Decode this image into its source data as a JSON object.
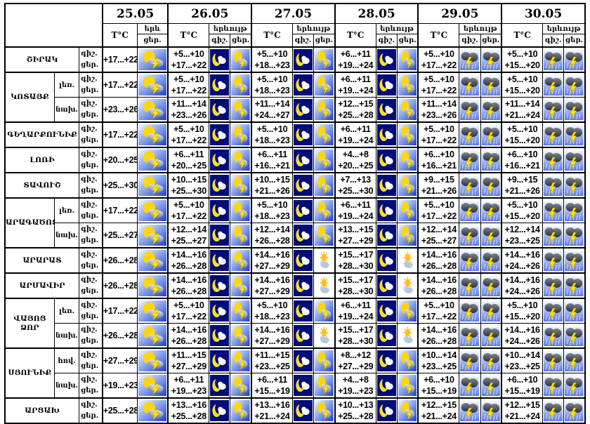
{
  "dates": [
    "25.05",
    "26.05",
    "27.05",
    "28.05",
    "29.05",
    "30.05"
  ],
  "header": {
    "temp_label": "T°C",
    "phenomenon_label": "երևույթ",
    "phenomenon_short": "երև",
    "night_label": "գիշ.",
    "day_label": "ցեր."
  },
  "icon_names": {
    "sl": "sun-cloud-lightning-icon",
    "mc": "moon-cloud-icon",
    "st": "storm-lightning-rain-icon",
    "sc": "sun-behind-cloud-icon"
  },
  "colors": {
    "border": "#000000",
    "background": "#ffffff",
    "night_icon_bg": "#000d78",
    "day_icon_bg": "#1d3bcf",
    "storm_icon_bg": "#5b79e8",
    "sun": "#ffd60a",
    "moon": "#ffdf29",
    "lightning": "#ffe70a",
    "dark_cloud": "#2e333b"
  },
  "regions": [
    {
      "name": "ՇԻՐԱԿ",
      "rows": [
        {
          "sub": null,
          "cells": [
            {
              "day": "+17...+22",
              "icons": [
                "sl"
              ]
            },
            {
              "night": "+5...+10",
              "day": "+17...+22",
              "icons": [
                "mc",
                "sl"
              ]
            },
            {
              "night": "+5...+10",
              "day": "+18...+23",
              "icons": [
                "mc",
                "sl"
              ]
            },
            {
              "night": "+6...+11",
              "day": "+19...+24",
              "icons": [
                "mc",
                "sl"
              ]
            },
            {
              "night": "+5...+10",
              "day": "+17...+22",
              "icons": [
                "st",
                "st"
              ]
            },
            {
              "night": "+5...+10",
              "day": "+15...+20",
              "icons": [
                "st",
                "st"
              ]
            }
          ]
        }
      ]
    },
    {
      "name": "ԿՈՏԱՅՔ",
      "rows": [
        {
          "sub": "լեռ.",
          "cells": [
            {
              "day": "+17...+22",
              "icons": [
                "sl"
              ]
            },
            {
              "night": "+5...+10",
              "day": "+17...+22",
              "icons": [
                "mc",
                "sl"
              ]
            },
            {
              "night": "+5...+10",
              "day": "+18...+23",
              "icons": [
                "mc",
                "sl"
              ]
            },
            {
              "night": "+6...+11",
              "day": "+19...+24",
              "icons": [
                "mc",
                "sl"
              ]
            },
            {
              "night": "+5...+10",
              "day": "+17...+22",
              "icons": [
                "st",
                "st"
              ]
            },
            {
              "night": "+5...+10",
              "day": "+15...+20",
              "icons": [
                "st",
                "st"
              ]
            }
          ]
        },
        {
          "sub": "նախ.",
          "cells": [
            {
              "day": "+23...+26",
              "icons": [
                "sl"
              ]
            },
            {
              "night": "+11...+14",
              "day": "+23...+26",
              "icons": [
                "mc",
                "sl"
              ]
            },
            {
              "night": "+11...+14",
              "day": "+24...+27",
              "icons": [
                "mc",
                "sl"
              ]
            },
            {
              "night": "+12...+15",
              "day": "+25...+28",
              "icons": [
                "mc",
                "sl"
              ]
            },
            {
              "night": "+11...+14",
              "day": "+23...+26",
              "icons": [
                "st",
                "st"
              ]
            },
            {
              "night": "+11...+14",
              "day": "+21...+24",
              "icons": [
                "st",
                "st"
              ]
            }
          ]
        }
      ]
    },
    {
      "name": "ԳԵՂԱՐՔՈՒՆԻՔ",
      "rows": [
        {
          "sub": null,
          "cells": [
            {
              "day": "+17...+22",
              "icons": [
                "sl"
              ]
            },
            {
              "night": "+5...+10",
              "day": "+17...+22",
              "icons": [
                "mc",
                "sl"
              ]
            },
            {
              "night": "+5...+10",
              "day": "+18...+23",
              "icons": [
                "mc",
                "sl"
              ]
            },
            {
              "night": "+6...+11",
              "day": "+19...+24",
              "icons": [
                "mc",
                "sl"
              ]
            },
            {
              "night": "+5...+10",
              "day": "+17...+22",
              "icons": [
                "st",
                "st"
              ]
            },
            {
              "night": "+5...+10",
              "day": "+15...+20",
              "icons": [
                "st",
                "st"
              ]
            }
          ]
        }
      ]
    },
    {
      "name": "ԼՈՌԻ",
      "rows": [
        {
          "sub": null,
          "cells": [
            {
              "day": "+20...+25",
              "icons": [
                "sl"
              ]
            },
            {
              "night": "+6...+11",
              "day": "+20...+25",
              "icons": [
                "mc",
                "sl"
              ]
            },
            {
              "night": "+6...+11",
              "day": "+16...+21",
              "icons": [
                "mc",
                "sl"
              ]
            },
            {
              "night": "+4...+8",
              "day": "+20...+25",
              "icons": [
                "mc",
                "sl"
              ]
            },
            {
              "night": "+6...+10",
              "day": "+16...+21",
              "icons": [
                "st",
                "st"
              ]
            },
            {
              "night": "+6...+10",
              "day": "+16...+21",
              "icons": [
                "st",
                "st"
              ]
            }
          ]
        }
      ]
    },
    {
      "name": "ՏԱՎՈՒՇ",
      "rows": [
        {
          "sub": null,
          "cells": [
            {
              "day": "+25...+30",
              "icons": [
                "sl"
              ]
            },
            {
              "night": "+10...+15",
              "day": "+25...+30",
              "icons": [
                "mc",
                "sl"
              ]
            },
            {
              "night": "+10...+15",
              "day": "+21...+26",
              "icons": [
                "mc",
                "sl"
              ]
            },
            {
              "night": "+7...+13",
              "day": "+25...+30",
              "icons": [
                "mc",
                "sl"
              ]
            },
            {
              "night": "+9...+15",
              "day": "+21...+26",
              "icons": [
                "st",
                "st"
              ]
            },
            {
              "night": "+9...+15",
              "day": "+21...+26",
              "icons": [
                "st",
                "st"
              ]
            }
          ]
        }
      ]
    },
    {
      "name": "ԱՐԱԳԱԾՈՏՆ",
      "rows": [
        {
          "sub": "լեռ.",
          "cells": [
            {
              "day": "+17...+22",
              "icons": [
                "sl"
              ]
            },
            {
              "night": "+5...+10",
              "day": "+17...+22",
              "icons": [
                "mc",
                "sl"
              ]
            },
            {
              "night": "+5...+10",
              "day": "+18...+23",
              "icons": [
                "mc",
                "sl"
              ]
            },
            {
              "night": "+6...+11",
              "day": "+19...+24",
              "icons": [
                "mc",
                "sl"
              ]
            },
            {
              "night": "+5...+10",
              "day": "+17...+22",
              "icons": [
                "st",
                "st"
              ]
            },
            {
              "night": "+5...+10",
              "day": "+15...+20",
              "icons": [
                "st",
                "st"
              ]
            }
          ]
        },
        {
          "sub": "նախ.",
          "cells": [
            {
              "day": "+25...+27",
              "icons": [
                "sl"
              ]
            },
            {
              "night": "+12...+14",
              "day": "+25...+27",
              "icons": [
                "mc",
                "sl"
              ]
            },
            {
              "night": "+12...+14",
              "day": "+26...+28",
              "icons": [
                "mc",
                "sl"
              ]
            },
            {
              "night": "+13...+15",
              "day": "+27...+29",
              "icons": [
                "mc",
                "sl"
              ]
            },
            {
              "night": "+12...+14",
              "day": "+25...+27",
              "icons": [
                "st",
                "st"
              ]
            },
            {
              "night": "+12...+14",
              "day": "+23...+25",
              "icons": [
                "st",
                "st"
              ]
            }
          ]
        }
      ]
    },
    {
      "name": "ԱՐԱՐԱՏ",
      "rows": [
        {
          "sub": null,
          "cells": [
            {
              "day": "+26...+28",
              "icons": [
                "sl"
              ]
            },
            {
              "night": "+14...+16",
              "day": "+26...+28",
              "icons": [
                "mc",
                "sl"
              ]
            },
            {
              "night": "+14...+16",
              "day": "+27...+29",
              "icons": [
                "mc",
                "sc"
              ]
            },
            {
              "night": "+15...+17",
              "day": "+28...+30",
              "icons": [
                "mc",
                "sc"
              ]
            },
            {
              "night": "+14...+16",
              "day": "+26...+28",
              "icons": [
                "st",
                "st"
              ]
            },
            {
              "night": "+14...+16",
              "day": "+24...+26",
              "icons": [
                "st",
                "st"
              ]
            }
          ]
        }
      ]
    },
    {
      "name": "ԱՐՄԱՎԻՐ",
      "rows": [
        {
          "sub": null,
          "cells": [
            {
              "day": "+26...+28",
              "icons": [
                "sl"
              ]
            },
            {
              "night": "+14...+16",
              "day": "+26...+28",
              "icons": [
                "mc",
                "sl"
              ]
            },
            {
              "night": "+14...+16",
              "day": "+27...+29",
              "icons": [
                "mc",
                "sc"
              ]
            },
            {
              "night": "+15...+17",
              "day": "+28...+30",
              "icons": [
                "mc",
                "sc"
              ]
            },
            {
              "night": "+14...+16",
              "day": "+26...+28",
              "icons": [
                "st",
                "st"
              ]
            },
            {
              "night": "+14...+16",
              "day": "+24...+26",
              "icons": [
                "st",
                "st"
              ]
            }
          ]
        }
      ]
    },
    {
      "name": "ՎԱՅՈՑ ՁՈՐ",
      "rows": [
        {
          "sub": "լեռ.",
          "cells": [
            {
              "day": "+17...+22",
              "icons": [
                "sl"
              ]
            },
            {
              "night": "+5...+10",
              "day": "+17...+22",
              "icons": [
                "mc",
                "sl"
              ]
            },
            {
              "night": "+5...+10",
              "day": "+18...+23",
              "icons": [
                "mc",
                "sl"
              ]
            },
            {
              "night": "+6...+11",
              "day": "+19...+24",
              "icons": [
                "mc",
                "sl"
              ]
            },
            {
              "night": "+5...+10",
              "day": "+17...+22",
              "icons": [
                "st",
                "st"
              ]
            },
            {
              "night": "+5...+10",
              "day": "+15...+20",
              "icons": [
                "st",
                "st"
              ]
            }
          ]
        },
        {
          "sub": "նախ.",
          "cells": [
            {
              "day": "+26...+28",
              "icons": [
                "sl"
              ]
            },
            {
              "night": "+14...+16",
              "day": "+26...+28",
              "icons": [
                "mc",
                "sl"
              ]
            },
            {
              "night": "+14...+16",
              "day": "+27...+29",
              "icons": [
                "mc",
                "sc"
              ]
            },
            {
              "night": "+15...+17",
              "day": "+28...+30",
              "icons": [
                "mc",
                "sc"
              ]
            },
            {
              "night": "+14...+16",
              "day": "+26...+28",
              "icons": [
                "st",
                "st"
              ]
            },
            {
              "night": "+14...+16",
              "day": "+24...+26",
              "icons": [
                "st",
                "st"
              ]
            }
          ]
        }
      ]
    },
    {
      "name": "ՍՅՈՒՆԻՔ",
      "rows": [
        {
          "sub": "հով.",
          "cells": [
            {
              "day": "+27...+29",
              "icons": [
                "sl"
              ]
            },
            {
              "night": "+11...+15",
              "day": "+27...+29",
              "icons": [
                "mc",
                "sl"
              ]
            },
            {
              "night": "+11...+15",
              "day": "+23...+25",
              "icons": [
                "mc",
                "sl"
              ]
            },
            {
              "night": "+8...+12",
              "day": "+27...+29",
              "icons": [
                "mc",
                "sl"
              ]
            },
            {
              "night": "+10...+14",
              "day": "+23...+25",
              "icons": [
                "st",
                "st"
              ]
            },
            {
              "night": "+10...+14",
              "day": "+23...+25",
              "icons": [
                "st",
                "st"
              ]
            }
          ]
        },
        {
          "sub": "նախ.",
          "cells": [
            {
              "day": "+19...+23",
              "icons": [
                "sl"
              ]
            },
            {
              "night": "+6...+11",
              "day": "+19...+23",
              "icons": [
                "mc",
                "sl"
              ]
            },
            {
              "night": "+6...+11",
              "day": "+15...+19",
              "icons": [
                "mc",
                "sl"
              ]
            },
            {
              "night": "+4...+8",
              "day": "+19...+23",
              "icons": [
                "mc",
                "sl"
              ]
            },
            {
              "night": "+6...+10",
              "day": "+15...+19",
              "icons": [
                "st",
                "st"
              ]
            },
            {
              "night": "+6...+10",
              "day": "+15...+19",
              "icons": [
                "st",
                "st"
              ]
            }
          ]
        }
      ]
    },
    {
      "name": "ԱՐՑԱԽ",
      "rows": [
        {
          "sub": null,
          "cells": [
            {
              "day": "+25...+28",
              "icons": [
                "sl"
              ]
            },
            {
              "night": "+13...+16",
              "day": "+25...+28",
              "icons": [
                "mc",
                "sl"
              ]
            },
            {
              "night": "+13...+16",
              "day": "+21...+24",
              "icons": [
                "mc",
                "sl"
              ]
            },
            {
              "night": "+10...+13",
              "day": "+25...+28",
              "icons": [
                "mc",
                "sl"
              ]
            },
            {
              "night": "+12...+15",
              "day": "+21...+24",
              "icons": [
                "st",
                "st"
              ]
            },
            {
              "night": "+12...+15",
              "day": "+21...+24",
              "icons": [
                "st",
                "st"
              ]
            }
          ]
        }
      ]
    }
  ]
}
